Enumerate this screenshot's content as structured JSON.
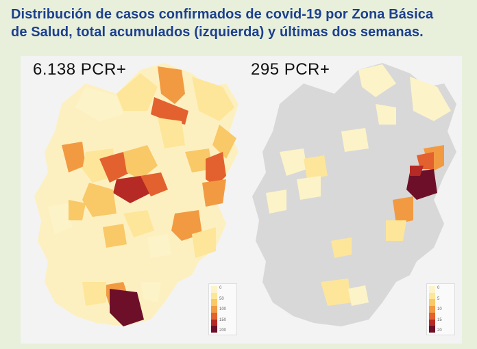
{
  "title": {
    "line1": "Distribución de casos confirmados de covid-19 por Zona Básica",
    "line2": "de Salud, total acumulados (izquierda) y últimas dos semanas."
  },
  "maps": [
    {
      "count": "6.138 PCR+",
      "legend_labels": [
        "0",
        "50",
        "100",
        "150",
        "200"
      ],
      "colors": [
        "#fdf3c8",
        "#fde69a",
        "#f9c867",
        "#f29a42",
        "#e3612e",
        "#b52a24",
        "#6e0f2a"
      ]
    },
    {
      "count": "295 PCR+",
      "legend_labels": [
        "0",
        "5",
        "10",
        "15",
        "20"
      ],
      "colors": [
        "#fdf3c8",
        "#fde69a",
        "#f9c867",
        "#f29a42",
        "#e3612e",
        "#b52a24",
        "#6e0f2a"
      ]
    }
  ]
}
